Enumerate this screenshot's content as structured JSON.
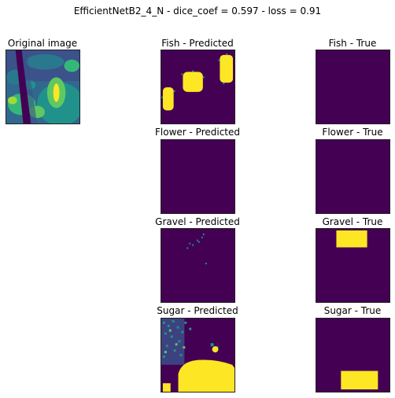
{
  "figure": {
    "suptitle": "EfficientNetB2_4_N - dice_coef = 0.597 - loss = 0.91"
  },
  "original": {
    "title": "Original image"
  },
  "rows": [
    {
      "pred_title": "Fish - Predicted",
      "true_title": "Fish - True"
    },
    {
      "pred_title": "Flower - Predicted",
      "true_title": "Flower - True"
    },
    {
      "pred_title": "Gravel - Predicted",
      "true_title": "Gravel - True"
    },
    {
      "pred_title": "Sugar - Predicted",
      "true_title": "Sugar - True"
    }
  ],
  "colors": {
    "background": "#440154",
    "mask": "#fde725",
    "teal": "#21918c",
    "green": "#5ec962",
    "blue": "#3b528b"
  }
}
